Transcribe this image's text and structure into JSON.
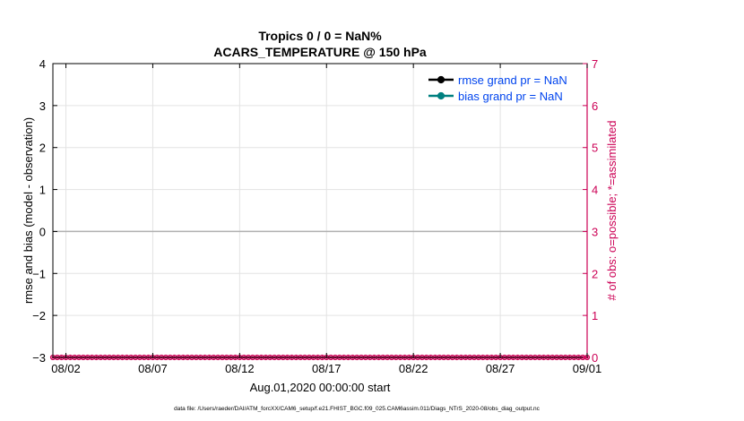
{
  "chart_data": {
    "type": "line",
    "title": "Tropics 0 / 0 = NaN%",
    "subtitle": "ACARS_TEMPERATURE @ 150 hPa",
    "xlabel": "Aug.01,2020 00:00:00 start",
    "ylabel": "rmse and bias (model - observation)",
    "y2label": "# of obs: o=possible; *=assimilated",
    "footnote": "data file: /Users/raeder/DAI/ATM_forcXX/CAM6_setup/f.e21.FHIST_BGC.f09_025.CAM6assim.011/Diags_NTrS_2020-08/obs_diag_output.nc",
    "x_ticks": [
      {
        "value": 1,
        "label": "08/02"
      },
      {
        "value": 6,
        "label": "08/07"
      },
      {
        "value": 11,
        "label": "08/12"
      },
      {
        "value": 16,
        "label": "08/17"
      },
      {
        "value": 21,
        "label": "08/22"
      },
      {
        "value": 26,
        "label": "08/27"
      },
      {
        "value": 31,
        "label": "09/01"
      }
    ],
    "xlim": [
      0.25,
      31
    ],
    "ylim": [
      -3,
      4
    ],
    "y_ticks": [
      -3,
      -2,
      -1,
      0,
      1,
      2,
      3,
      4
    ],
    "y2lim": [
      0,
      7
    ],
    "y2_ticks": [
      0,
      1,
      2,
      3,
      4,
      5,
      6,
      7
    ],
    "grid": true,
    "legend_position": "top-right",
    "series": [
      {
        "name": "rmse grand pr = NaN",
        "color": "#000000",
        "values": []
      },
      {
        "name": "bias grand pr = NaN",
        "color": "#008080",
        "values": []
      }
    ],
    "zero_line": {
      "value": 0,
      "color": "#b0b0b0"
    },
    "obs_counts": {
      "color": "#cc0055",
      "possible": 0,
      "assimilated": 0,
      "x_start": 0.25,
      "x_end": 31,
      "step": 0.25
    },
    "colors": {
      "left_axis": "#000000",
      "right_axis": "#cc0055",
      "legend_text": "#0044ee",
      "grid": "#e3e3e3"
    }
  }
}
